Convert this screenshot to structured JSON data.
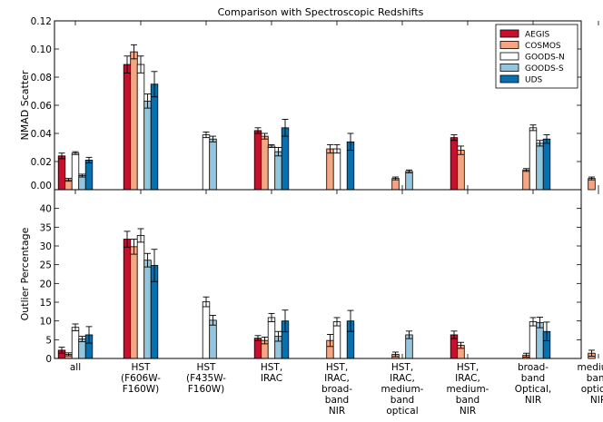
{
  "chart_data": {
    "type": "bar",
    "title": "Comparison with Spectroscopic Redshifts",
    "categories": [
      [
        "all"
      ],
      [
        "HST",
        "(F606W-",
        "F160W)"
      ],
      [
        "HST",
        "(F435W-",
        "F160W)"
      ],
      [
        "HST,",
        "IRAC"
      ],
      [
        "HST,",
        "IRAC,",
        "broad-",
        "band",
        "NIR"
      ],
      [
        "HST,",
        "IRAC,",
        "medium-",
        "band",
        "optical"
      ],
      [
        "HST,",
        "IRAC,",
        "medium-",
        "band",
        "NIR"
      ],
      [
        "broad-",
        "band",
        "Optical,",
        "NIR"
      ],
      [
        "medium-",
        "band",
        "optical,",
        "NIR"
      ]
    ],
    "series": [
      {
        "name": "AEGIS",
        "color": "#c8102e"
      },
      {
        "name": "COSMOS",
        "color": "#f4a582"
      },
      {
        "name": "GOODS-N",
        "color": "#ffffff"
      },
      {
        "name": "GOODS-S",
        "color": "#92c5de"
      },
      {
        "name": "UDS",
        "color": "#0571b0"
      }
    ],
    "panels": [
      {
        "ylabel": "NMAD Scatter",
        "ylim": [
          0,
          0.12
        ],
        "yticks": [
          "0.00",
          "0.02",
          "0.04",
          "0.06",
          "0.08",
          "0.10",
          "0.12"
        ],
        "tick_values": [
          0,
          0.02,
          0.04,
          0.06,
          0.08,
          0.1,
          0.12
        ],
        "values": [
          [
            0.024,
            0.007,
            0.026,
            0.01,
            0.021
          ],
          [
            0.089,
            0.098,
            0.089,
            0.063,
            0.075
          ],
          [
            null,
            null,
            0.039,
            0.036,
            null
          ],
          [
            0.042,
            0.038,
            0.031,
            0.027,
            0.044
          ],
          [
            null,
            0.029,
            0.029,
            null,
            0.034
          ],
          [
            null,
            0.008,
            null,
            0.013,
            null
          ],
          [
            0.037,
            0.028,
            null,
            null,
            null
          ],
          [
            null,
            0.014,
            0.044,
            0.033,
            0.036
          ],
          [
            null,
            0.008,
            null,
            null,
            null
          ]
        ],
        "errors": [
          [
            0.002,
            0.001,
            0.001,
            0.001,
            0.002
          ],
          [
            0.006,
            0.005,
            0.006,
            0.005,
            0.009
          ],
          [
            null,
            null,
            0.002,
            0.002,
            null
          ],
          [
            0.002,
            0.002,
            0.001,
            0.003,
            0.006
          ],
          [
            null,
            0.003,
            0.003,
            null,
            0.006
          ],
          [
            null,
            0.001,
            null,
            0.001,
            null
          ],
          [
            0.002,
            0.003,
            null,
            null,
            null
          ],
          [
            null,
            0.001,
            0.002,
            0.002,
            0.003
          ],
          [
            null,
            0.001,
            null,
            null,
            null
          ]
        ]
      },
      {
        "ylabel": "Outlier Percentage",
        "ylim": [
          0,
          45
        ],
        "yticks": [
          "0",
          "5",
          "10",
          "15",
          "20",
          "25",
          "30",
          "35",
          "40"
        ],
        "tick_values": [
          0,
          5,
          10,
          15,
          20,
          25,
          30,
          35,
          40
        ],
        "values": [
          [
            2.2,
            1.1,
            8.3,
            5.2,
            6.3
          ],
          [
            31.8,
            29.8,
            32.8,
            26.2,
            24.8
          ],
          [
            null,
            null,
            15.1,
            10.2,
            null
          ],
          [
            5.4,
            4.8,
            10.9,
            5.9,
            10.0
          ],
          [
            null,
            4.8,
            9.8,
            null,
            10.0
          ],
          [
            null,
            1.1,
            null,
            6.3,
            null
          ],
          [
            6.3,
            3.5,
            null,
            null,
            null
          ],
          [
            null,
            0.9,
            9.8,
            9.6,
            7.2
          ],
          [
            null,
            1.4,
            null,
            null,
            null
          ]
        ],
        "errors": [
          [
            0.8,
            0.4,
            0.9,
            0.7,
            2.2
          ],
          [
            2.1,
            2.0,
            1.8,
            1.8,
            4.3
          ],
          [
            null,
            null,
            1.3,
            1.3,
            null
          ],
          [
            0.7,
            0.9,
            1.1,
            1.3,
            2.9
          ],
          [
            null,
            1.6,
            1.1,
            null,
            2.8
          ],
          [
            null,
            0.6,
            null,
            1.0,
            null
          ],
          [
            1.0,
            0.8,
            null,
            null,
            null
          ],
          [
            null,
            0.5,
            1.1,
            1.4,
            2.5
          ],
          [
            null,
            0.8,
            null,
            null,
            null
          ]
        ]
      }
    ]
  }
}
